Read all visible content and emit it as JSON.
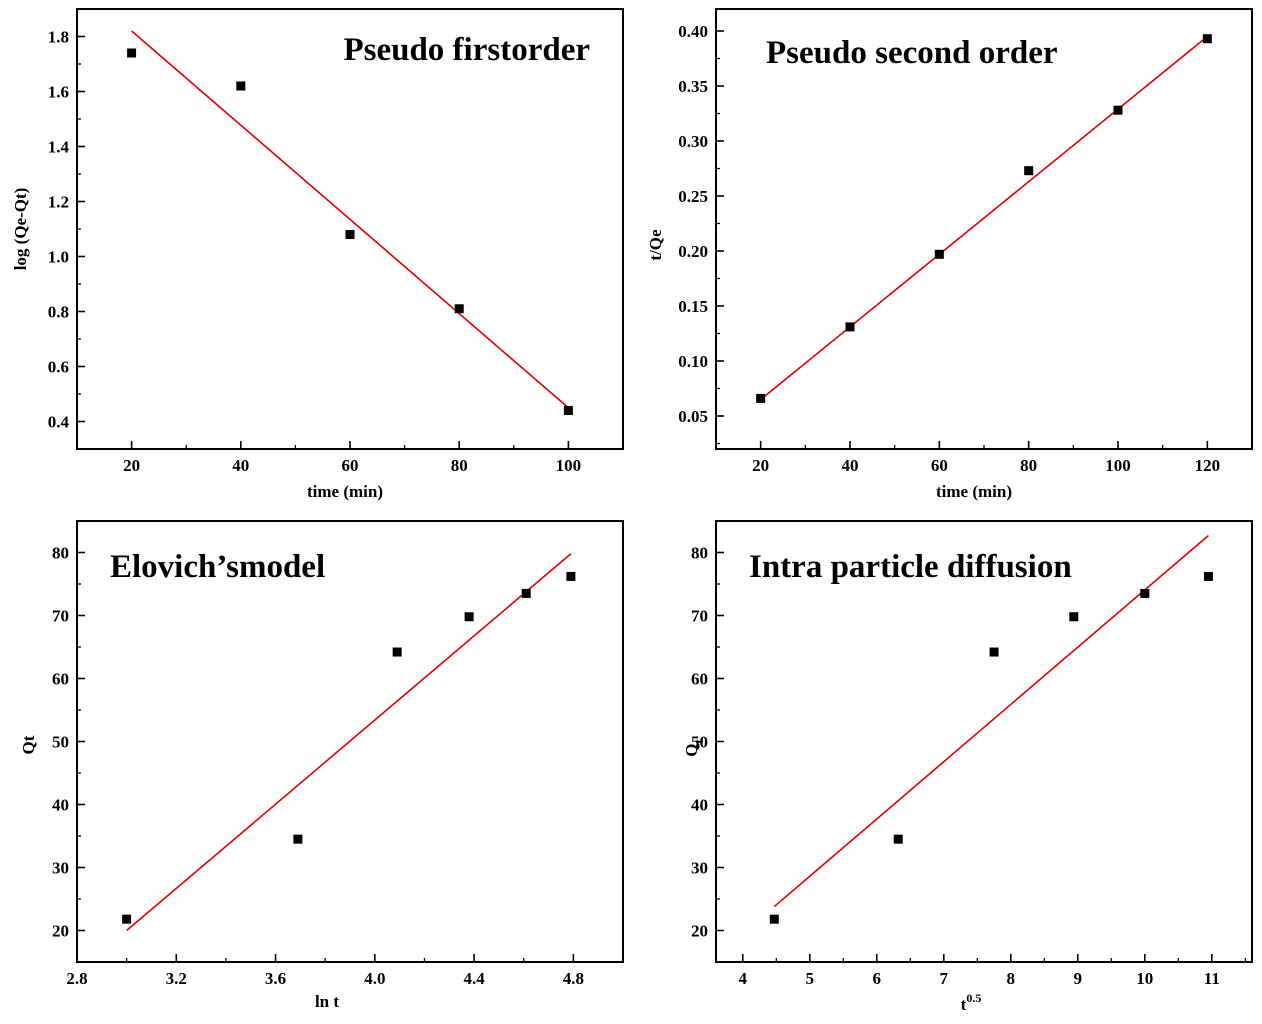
{
  "chart_data": [
    {
      "type": "scatter",
      "title": "Pseudo firstorder",
      "xlabel": "time (min)",
      "ylabel": "log (Qe-Qt)",
      "xlim": [
        10,
        110
      ],
      "ylim": [
        0.3,
        1.9
      ],
      "xticks": [
        "20",
        "40",
        "60",
        "80",
        "100"
      ],
      "yticks": [
        "0.4",
        "0.6",
        "0.8",
        "1.0",
        "1.2",
        "1.4",
        "1.6",
        "1.8"
      ],
      "series": [
        {
          "x": [
            20,
            40,
            60,
            80,
            100
          ],
          "y": [
            1.74,
            1.62,
            1.08,
            0.81,
            0.44
          ]
        }
      ],
      "fit": {
        "x": [
          20,
          100
        ],
        "y": [
          1.82,
          0.45
        ]
      },
      "marker_color": "#000000",
      "fit_color": "#e00000"
    },
    {
      "type": "scatter",
      "title": "Pseudo second order",
      "xlabel": "time (min)",
      "ylabel": "t/Qe",
      "xlim": [
        10,
        130
      ],
      "ylim": [
        0.02,
        0.42
      ],
      "xticks": [
        "20",
        "40",
        "60",
        "80",
        "100",
        "120"
      ],
      "yticks": [
        "0.05",
        "0.10",
        "0.15",
        "0.20",
        "0.25",
        "0.30",
        "0.35",
        "0.40"
      ],
      "series": [
        {
          "x": [
            20,
            40,
            60,
            80,
            100,
            120
          ],
          "y": [
            0.066,
            0.131,
            0.197,
            0.273,
            0.328,
            0.393
          ]
        }
      ],
      "fit": {
        "x": [
          20,
          120
        ],
        "y": [
          0.065,
          0.395
        ]
      },
      "marker_color": "#000000",
      "fit_color": "#e00000"
    },
    {
      "type": "scatter",
      "title": "Elovich’smodel",
      "xlabel": "ln t",
      "ylabel": "Qt",
      "xlim": [
        2.8,
        5.0
      ],
      "ylim": [
        15,
        85
      ],
      "xticks": [
        "2.8",
        "3.2",
        "3.6",
        "4.0",
        "4.4",
        "4.8"
      ],
      "yticks": [
        "20",
        "30",
        "40",
        "50",
        "60",
        "70",
        "80"
      ],
      "series": [
        {
          "x": [
            3.0,
            3.69,
            4.09,
            4.38,
            4.61,
            4.79
          ],
          "y": [
            21.8,
            34.5,
            64.2,
            69.8,
            73.5,
            76.2
          ]
        }
      ],
      "fit": {
        "x": [
          3.0,
          4.79
        ],
        "y": [
          20.0,
          79.8
        ]
      },
      "marker_color": "#000000",
      "fit_color": "#e00000"
    },
    {
      "type": "scatter",
      "title": "Intra particle diffusion",
      "xlabel": "t0.5",
      "ylabel": "Qt",
      "xlim": [
        3.6,
        11.6
      ],
      "ylim": [
        15,
        85
      ],
      "xticks": [
        "4",
        "5",
        "6",
        "7",
        "8",
        "9",
        "10",
        "11"
      ],
      "yticks": [
        "20",
        "30",
        "40",
        "50",
        "60",
        "70",
        "80"
      ],
      "series": [
        {
          "x": [
            4.47,
            6.32,
            7.75,
            8.94,
            10.0,
            10.95
          ],
          "y": [
            21.8,
            34.5,
            64.2,
            69.8,
            73.5,
            76.2
          ]
        }
      ],
      "fit": {
        "x": [
          4.47,
          10.95
        ],
        "y": [
          23.8,
          82.7
        ]
      },
      "marker_color": "#000000",
      "fit_color": "#e00000"
    }
  ]
}
